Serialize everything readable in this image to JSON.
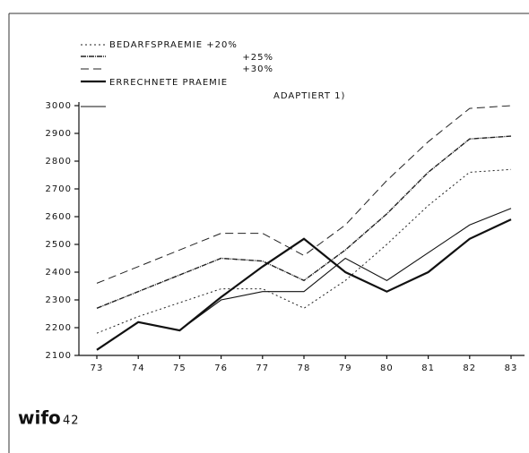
{
  "chart_data": {
    "type": "line",
    "categories": [
      "73",
      "74",
      "75",
      "76",
      "77",
      "78",
      "79",
      "80",
      "81",
      "82",
      "83"
    ],
    "series": [
      {
        "name": "BEDARFSPRAEMIE +20%",
        "color": "#222",
        "dash": "2 3",
        "width": 1,
        "values": [
          2180,
          2240,
          2290,
          2340,
          2340,
          2270,
          2370,
          2500,
          2640,
          2760,
          2770
        ]
      },
      {
        "name": "+25%",
        "color": "#222",
        "dash": "6 1 1 1",
        "width": 1.4,
        "values": [
          2270,
          2330,
          2390,
          2450,
          2440,
          2370,
          2480,
          2610,
          2760,
          2880,
          2890
        ]
      },
      {
        "name": "+30%",
        "color": "#222",
        "dash": "9 5",
        "width": 1,
        "values": [
          2360,
          2420,
          2480,
          2540,
          2540,
          2460,
          2570,
          2730,
          2870,
          2990,
          3000
        ]
      },
      {
        "name": "ERRECHNETE PRAEMIE",
        "color": "#111",
        "dash": "none",
        "width": 2.2,
        "values": [
          2120,
          2220,
          2190,
          2310,
          2420,
          2520,
          2400,
          2330,
          2400,
          2520,
          2590
        ]
      },
      {
        "name": "ADAPTIERT 1)",
        "color": "#111",
        "dash": "none",
        "width": 1.1,
        "values": [
          2120,
          2220,
          2190,
          2300,
          2330,
          2330,
          2450,
          2370,
          2470,
          2570,
          2630
        ]
      }
    ],
    "ylim": [
      2100,
      3000
    ],
    "yticks": [
      2100,
      2200,
      2300,
      2400,
      2500,
      2600,
      2700,
      2800,
      2900,
      3000
    ]
  },
  "footer": {
    "logo": "wifo",
    "page": "42"
  }
}
